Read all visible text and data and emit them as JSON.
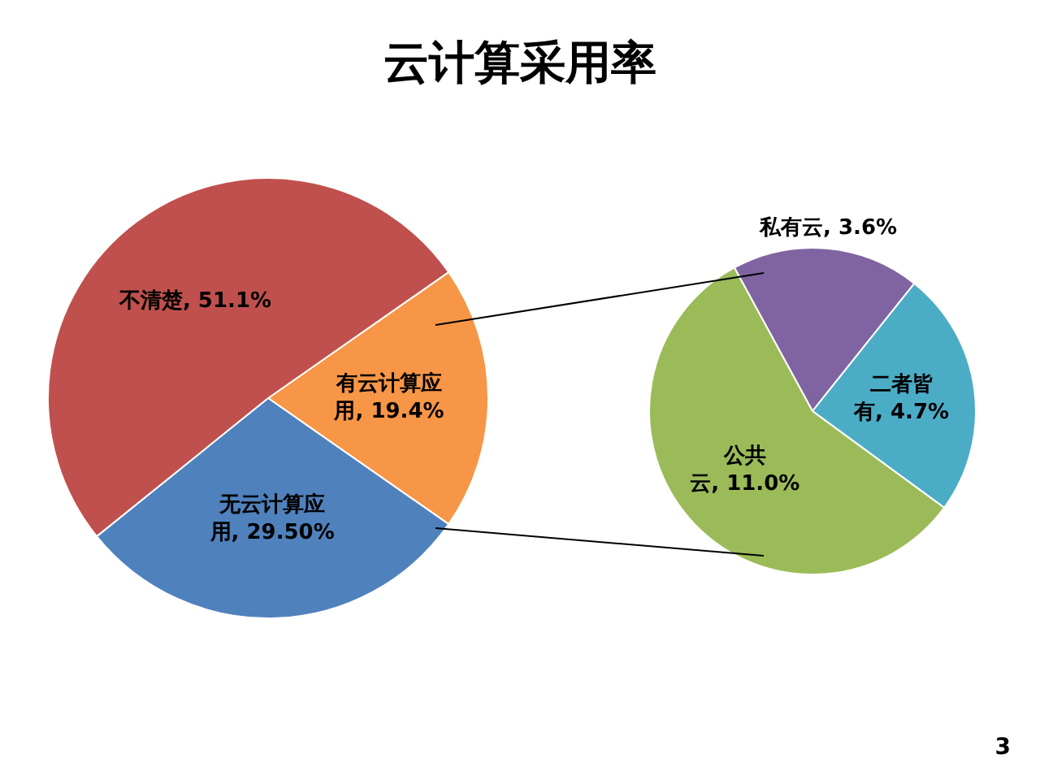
{
  "chart_data": [
    {
      "type": "pie",
      "title": "云计算采用率",
      "categories": [
        "有云计算应用",
        "无云计算应用",
        "不清楚"
      ],
      "values": [
        19.4,
        29.5,
        51.1
      ],
      "value_labels": [
        "19.4%",
        "29.50%",
        "51.1%"
      ],
      "colors": [
        "#f79646",
        "#4f81bd",
        "#c0504d"
      ],
      "legend": false,
      "annotations": [
        "3"
      ]
    },
    {
      "type": "pie",
      "categories": [
        "私有云",
        "二者皆有",
        "公共云"
      ],
      "values": [
        3.6,
        4.7,
        11.0
      ],
      "value_labels": [
        "3.6%",
        "4.7%",
        "11.0%"
      ],
      "colors": [
        "#8064a2",
        "#4bacc6",
        "#9bbb59"
      ],
      "legend": false
    }
  ]
}
